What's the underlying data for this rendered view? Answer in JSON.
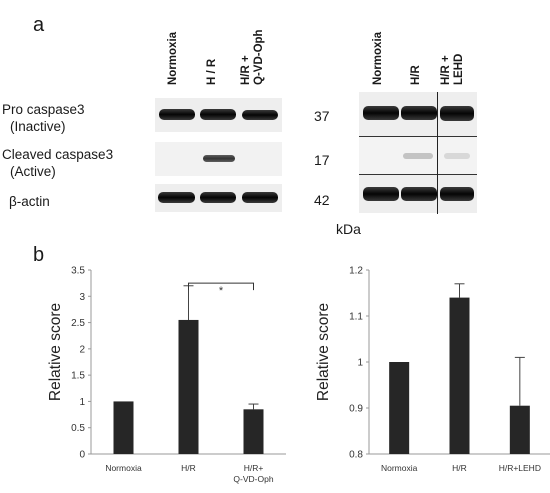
{
  "panels": {
    "a": "a",
    "b": "b"
  },
  "blot_left": {
    "lanes": [
      "Normoxia",
      "H / R",
      "H/R +",
      "Q-VD-Oph"
    ]
  },
  "blot_right": {
    "lanes": [
      "Normoxia",
      "H/R",
      "H/R +",
      "LEHD"
    ]
  },
  "rows": [
    {
      "label1": "Pro caspase3",
      "label2": "(Inactive)",
      "mw": "37"
    },
    {
      "label1": "Cleaved caspase3",
      "label2": "(Active)",
      "mw": "17"
    },
    {
      "label1": "β-actin",
      "mw": "42"
    }
  ],
  "mw_unit": "kDa",
  "chart_data": [
    {
      "type": "bar",
      "categories": [
        "Normoxia",
        "H/R",
        "H/R+ Q-VD-Oph"
      ],
      "category_lines": [
        [
          "Normoxia"
        ],
        [
          "H/R"
        ],
        [
          "H/R+",
          "Q-VD-Oph"
        ]
      ],
      "values": [
        1.0,
        2.55,
        0.85
      ],
      "errors": [
        0,
        0.65,
        0.1
      ],
      "ylabel": "Relative score",
      "ylim": [
        0,
        3.5
      ],
      "yticks": [
        0,
        0.5,
        1,
        1.5,
        2,
        2.5,
        3,
        3.5
      ],
      "tick_labels": [
        "0",
        "0.5",
        "1",
        "1.5",
        "2",
        "2.5",
        "3",
        "3.5"
      ],
      "significance": {
        "between": [
          1,
          2
        ],
        "label": "*"
      },
      "bar_color": "#262626"
    },
    {
      "type": "bar",
      "categories": [
        "Normoxia",
        "H/R",
        "H/R+LEHD"
      ],
      "category_lines": [
        [
          "Normoxia"
        ],
        [
          "H/R"
        ],
        [
          "H/R+LEHD"
        ]
      ],
      "values": [
        1.0,
        1.14,
        0.905
      ],
      "errors": [
        0,
        0.03,
        0.105
      ],
      "ylabel": "Relative score",
      "ylim": [
        0.8,
        1.2
      ],
      "yticks": [
        0.8,
        0.9,
        1.0,
        1.1,
        1.2
      ],
      "tick_labels": [
        "0.8",
        "0.9",
        "1",
        "1.1",
        "1.2"
      ],
      "bar_color": "#262626"
    }
  ]
}
